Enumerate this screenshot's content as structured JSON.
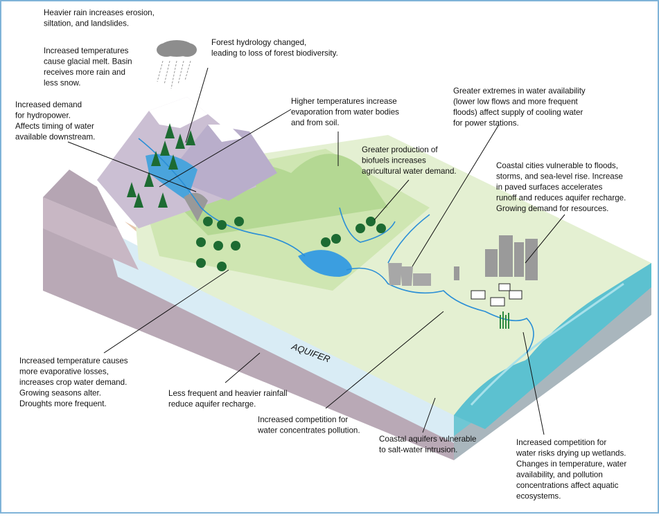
{
  "aquifer_label": "AQUIFER",
  "annotations": [
    {
      "lines": [
        "Heavier rain increases erosion,",
        "siltation, and landslides."
      ]
    },
    {
      "lines": [
        "Increased temperatures",
        "cause glacial melt. Basin",
        "receives more rain and",
        "less snow."
      ]
    },
    {
      "lines": [
        "Forest hydrology changed,",
        "leading to loss of forest biodiversity."
      ]
    },
    {
      "lines": [
        "Increased demand",
        "for hydropower.",
        "Affects timing of water",
        "available downstream."
      ]
    },
    {
      "lines": [
        "Higher temperatures increase",
        "evaporation from water bodies",
        "and from soil."
      ]
    },
    {
      "lines": [
        "Greater extremes in water availability",
        "(lower low flows and more frequent",
        "floods) affect supply of cooling water",
        "for power stations."
      ]
    },
    {
      "lines": [
        "Greater production of",
        "biofuels increases",
        "agricultural water demand."
      ]
    },
    {
      "lines": [
        "Coastal cities vulnerable to floods,",
        "storms, and sea-level rise. Increase",
        "in paved surfaces accelerates",
        "runoff and reduces aquifer recharge.",
        "Growing demand for resources."
      ]
    },
    {
      "lines": [
        "Increased temperature causes",
        "more evaporative losses,",
        "increases crop water demand.",
        "Growing seasons alter.",
        "Droughts more frequent."
      ]
    },
    {
      "lines": [
        "Less frequent and heavier rainfall",
        "reduce aquifer recharge."
      ]
    },
    {
      "lines": [
        "Increased competition for",
        "water concentrates pollution."
      ]
    },
    {
      "lines": [
        "Coastal aquifers vulnerable",
        "to salt-water intrusion."
      ]
    },
    {
      "lines": [
        "Increased competition for",
        "water risks drying up wetlands.",
        "Changes in temperature, water",
        "availability, and pollution",
        "concentrations affect aquatic",
        "ecosystems."
      ]
    }
  ]
}
